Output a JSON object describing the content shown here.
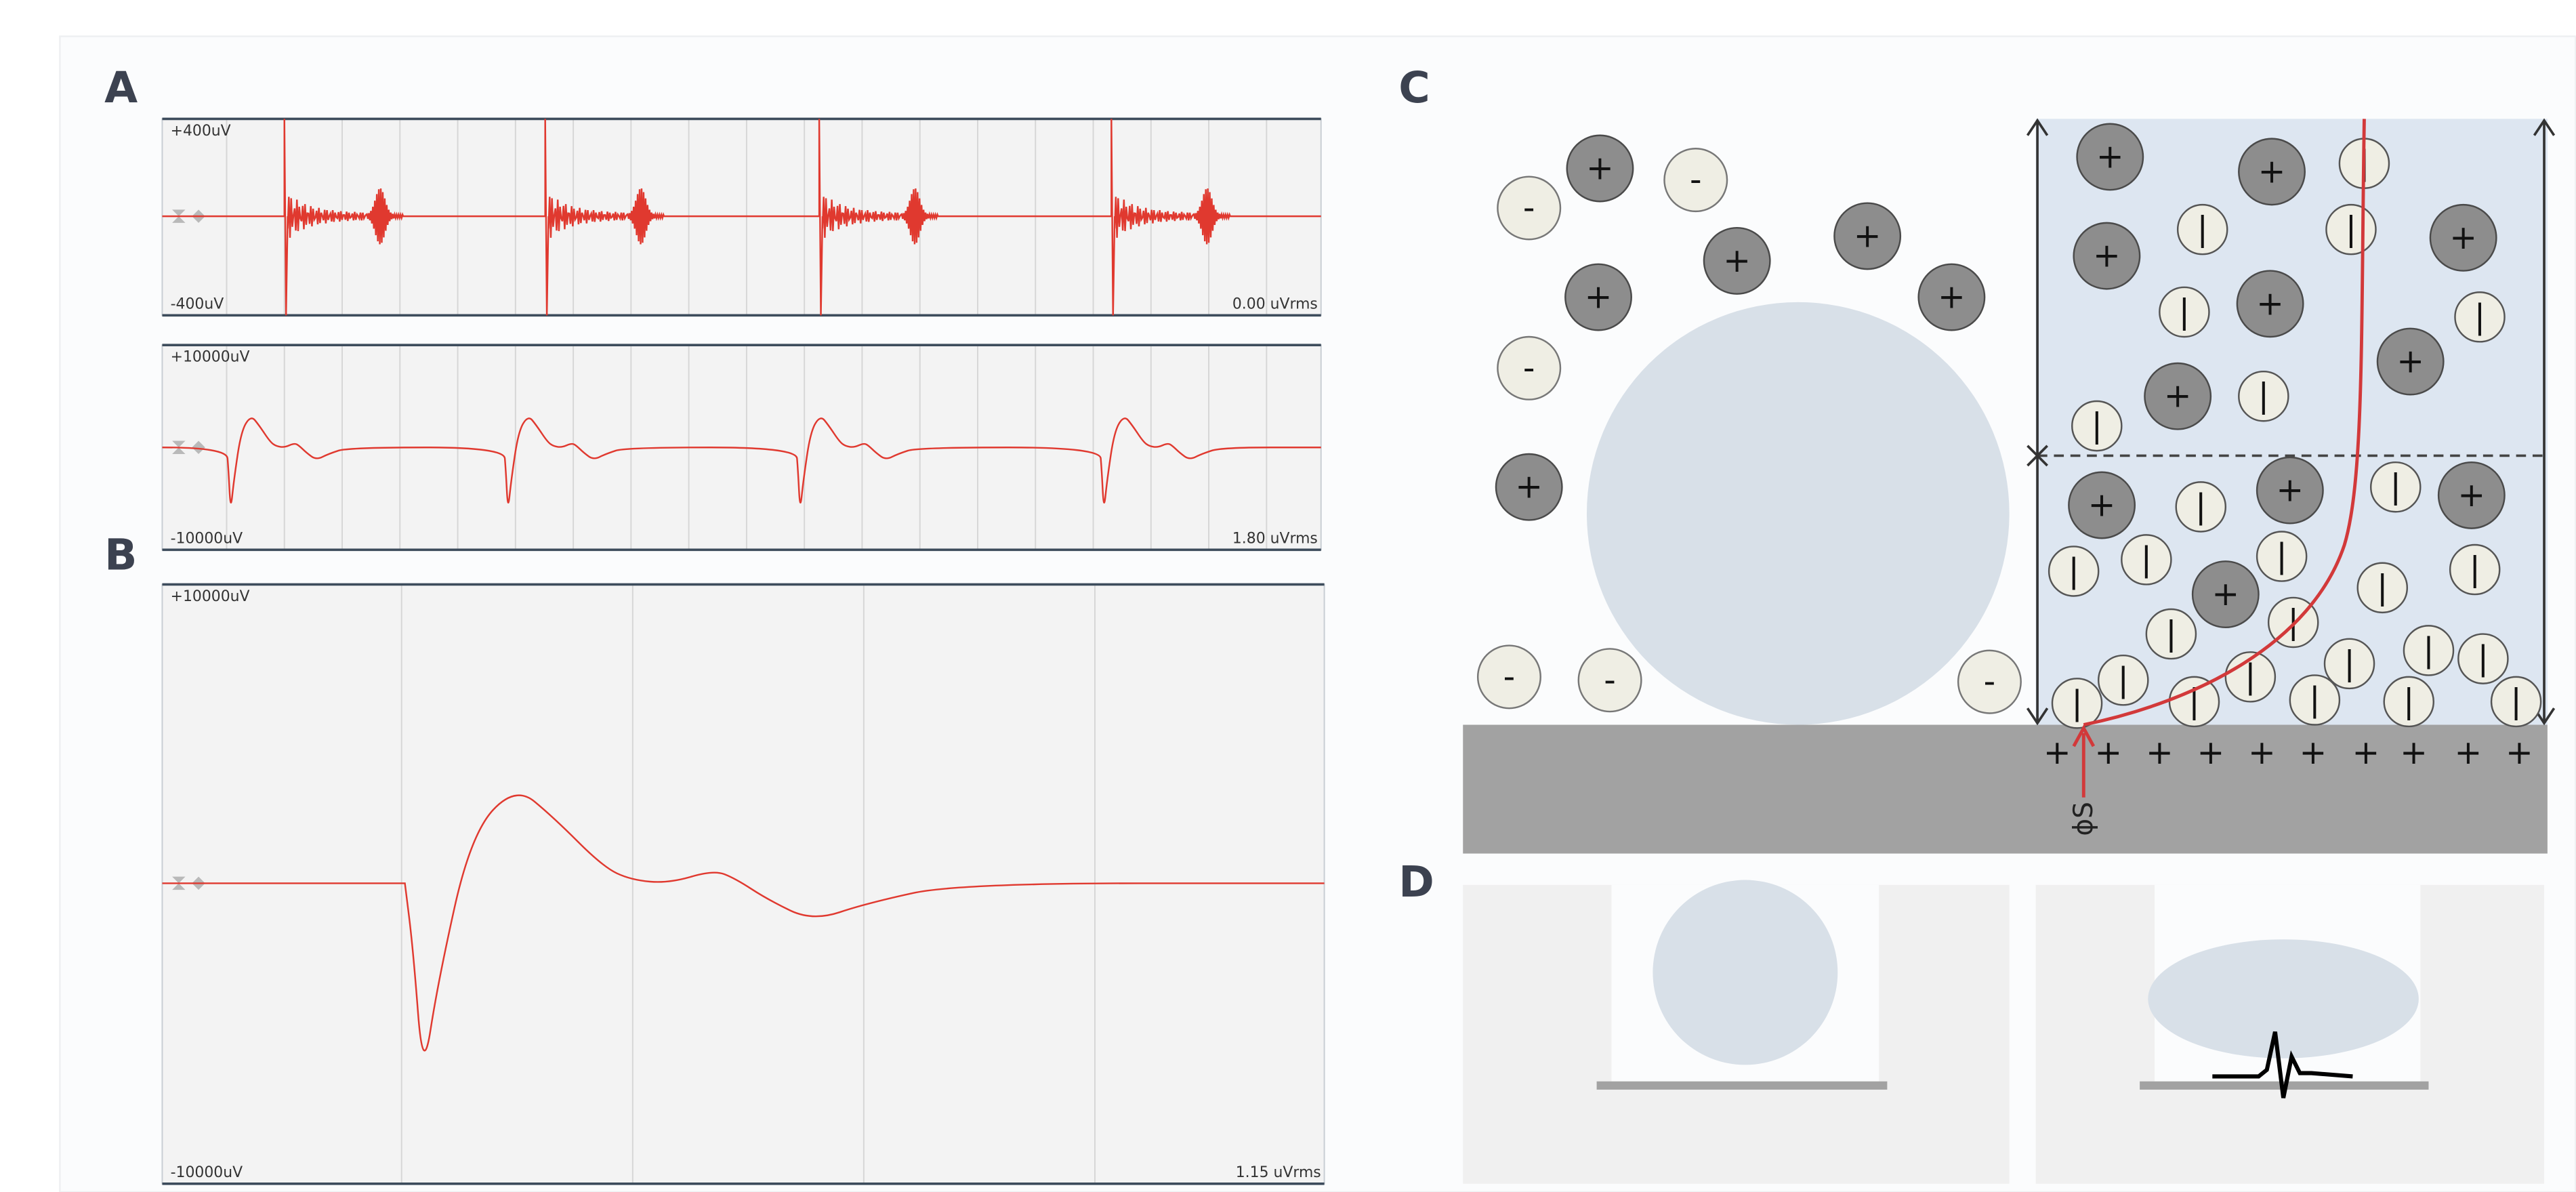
{
  "panels": {
    "A": {
      "label": "A",
      "traces": [
        {
          "top_label": "+400uV",
          "bottom_label": "-400uV",
          "rms": "0.00 uVrms"
        },
        {
          "top_label": "+10000uV",
          "bottom_label": "-10000uV",
          "rms": "1.80 uVrms"
        }
      ]
    },
    "B": {
      "label": "B",
      "top_label": "+10000uV",
      "bottom_label": "-10000uV",
      "rms": "1.15 uVrms"
    },
    "C": {
      "label": "C",
      "symbols": {
        "plus": "+",
        "minus": "-",
        "neutral": "|"
      },
      "potential": "ϕS"
    },
    "D": {
      "label": "D"
    }
  }
}
